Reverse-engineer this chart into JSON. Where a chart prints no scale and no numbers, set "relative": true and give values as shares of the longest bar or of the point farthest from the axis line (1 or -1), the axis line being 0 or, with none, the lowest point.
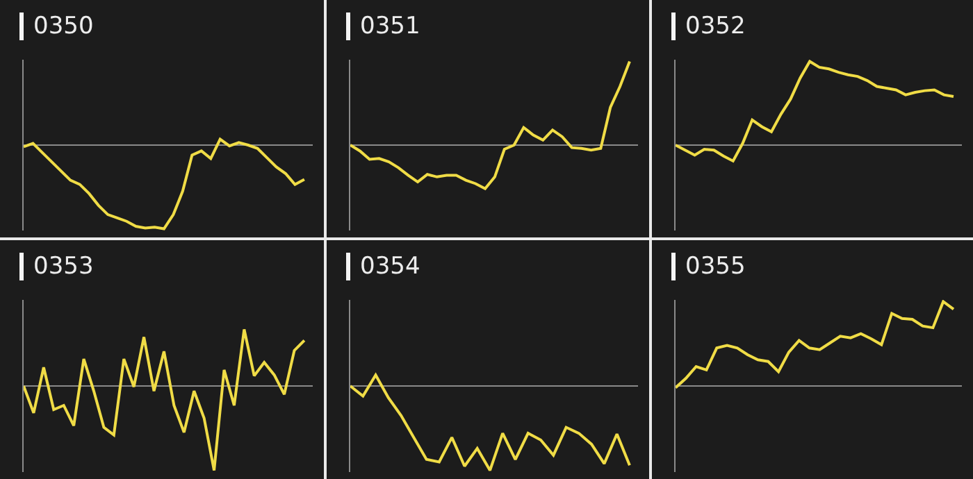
{
  "chart_data": [
    {
      "type": "line",
      "title": "0350",
      "relative": true,
      "color": "#f0dc46",
      "categories": [
        null,
        null,
        null,
        null,
        null,
        null,
        null,
        null,
        null,
        null,
        null,
        null,
        null,
        null,
        null,
        null,
        null,
        null,
        null,
        null,
        null,
        null,
        null,
        null,
        null,
        null,
        null,
        null,
        null,
        null,
        null
      ],
      "values": [
        -0.02,
        0.02,
        -0.09,
        -0.2,
        -0.31,
        -0.42,
        -0.47,
        -0.58,
        -0.72,
        -0.83,
        -0.87,
        -0.91,
        -0.97,
        -0.99,
        -0.98,
        -1,
        -0.83,
        -0.55,
        -0.12,
        -0.07,
        -0.16,
        0.07,
        -0.01,
        0.03,
        0,
        -0.04,
        -0.15,
        -0.26,
        -0.34,
        -0.47,
        -0.41
      ]
    },
    {
      "type": "line",
      "title": "0351",
      "relative": true,
      "color": "#f0dc46",
      "categories": [
        null,
        null,
        null,
        null,
        null,
        null,
        null,
        null,
        null,
        null,
        null,
        null,
        null,
        null,
        null,
        null,
        null,
        null,
        null,
        null,
        null,
        null,
        null,
        null,
        null,
        null,
        null,
        null,
        null,
        null
      ],
      "values": [
        0,
        -0.07,
        -0.17,
        -0.16,
        -0.2,
        -0.27,
        -0.36,
        -0.44,
        -0.35,
        -0.38,
        -0.36,
        -0.36,
        -0.42,
        -0.46,
        -0.52,
        -0.38,
        -0.05,
        0,
        0.21,
        0.12,
        0.06,
        0.18,
        0.1,
        -0.03,
        -0.04,
        -0.06,
        -0.04,
        0.45,
        0.7,
        1
      ]
    },
    {
      "type": "line",
      "title": "0352",
      "relative": true,
      "color": "#f0dc46",
      "categories": [
        null,
        null,
        null,
        null,
        null,
        null,
        null,
        null,
        null,
        null,
        null,
        null,
        null,
        null,
        null,
        null,
        null,
        null,
        null,
        null,
        null,
        null,
        null,
        null,
        null,
        null,
        null,
        null,
        null,
        null
      ],
      "values": [
        0,
        -0.06,
        -0.12,
        -0.05,
        -0.06,
        -0.13,
        -0.19,
        0.02,
        0.3,
        0.22,
        0.16,
        0.37,
        0.55,
        0.8,
        1,
        0.93,
        0.91,
        0.87,
        0.84,
        0.82,
        0.77,
        0.7,
        0.68,
        0.66,
        0.6,
        0.63,
        0.65,
        0.66,
        0.6,
        0.58
      ]
    },
    {
      "type": "line",
      "title": "0353",
      "relative": true,
      "color": "#f0dc46",
      "categories": [
        null,
        null,
        null,
        null,
        null,
        null,
        null,
        null,
        null,
        null,
        null,
        null,
        null,
        null,
        null,
        null,
        null,
        null,
        null,
        null,
        null,
        null,
        null,
        null,
        null,
        null,
        null,
        null,
        null
      ],
      "values": [
        0,
        -0.32,
        0.22,
        -0.28,
        -0.23,
        -0.47,
        0.32,
        -0.06,
        -0.49,
        -0.58,
        0.32,
        -0.01,
        0.58,
        -0.06,
        0.41,
        -0.23,
        -0.55,
        -0.06,
        -0.38,
        -1,
        0.19,
        -0.23,
        0.67,
        0.12,
        0.28,
        0.13,
        -0.1,
        0.42,
        0.54
      ]
    },
    {
      "type": "line",
      "title": "0354",
      "relative": true,
      "color": "#f0dc46",
      "categories": [
        null,
        null,
        null,
        null,
        null,
        null,
        null,
        null,
        null,
        null,
        null,
        null,
        null,
        null,
        null,
        null,
        null,
        null,
        null,
        null,
        null,
        null,
        null
      ],
      "values": [
        0,
        -0.12,
        0.13,
        -0.14,
        -0.35,
        -0.61,
        -0.87,
        -0.9,
        -0.61,
        -0.95,
        -0.74,
        -1,
        -0.56,
        -0.87,
        -0.56,
        -0.64,
        -0.82,
        -0.49,
        -0.56,
        -0.69,
        -0.92,
        -0.57,
        -0.94
      ]
    },
    {
      "type": "line",
      "title": "0355",
      "relative": true,
      "color": "#f0dc46",
      "categories": [
        null,
        null,
        null,
        null,
        null,
        null,
        null,
        null,
        null,
        null,
        null,
        null,
        null,
        null,
        null,
        null,
        null,
        null,
        null,
        null,
        null,
        null,
        null,
        null,
        null,
        null,
        null,
        null
      ],
      "values": [
        -0.02,
        0.09,
        0.23,
        0.19,
        0.45,
        0.48,
        0.45,
        0.37,
        0.31,
        0.29,
        0.17,
        0.4,
        0.54,
        0.45,
        0.43,
        0.51,
        0.59,
        0.57,
        0.62,
        0.56,
        0.49,
        0.86,
        0.8,
        0.79,
        0.71,
        0.69,
        1,
        0.91
      ]
    }
  ]
}
